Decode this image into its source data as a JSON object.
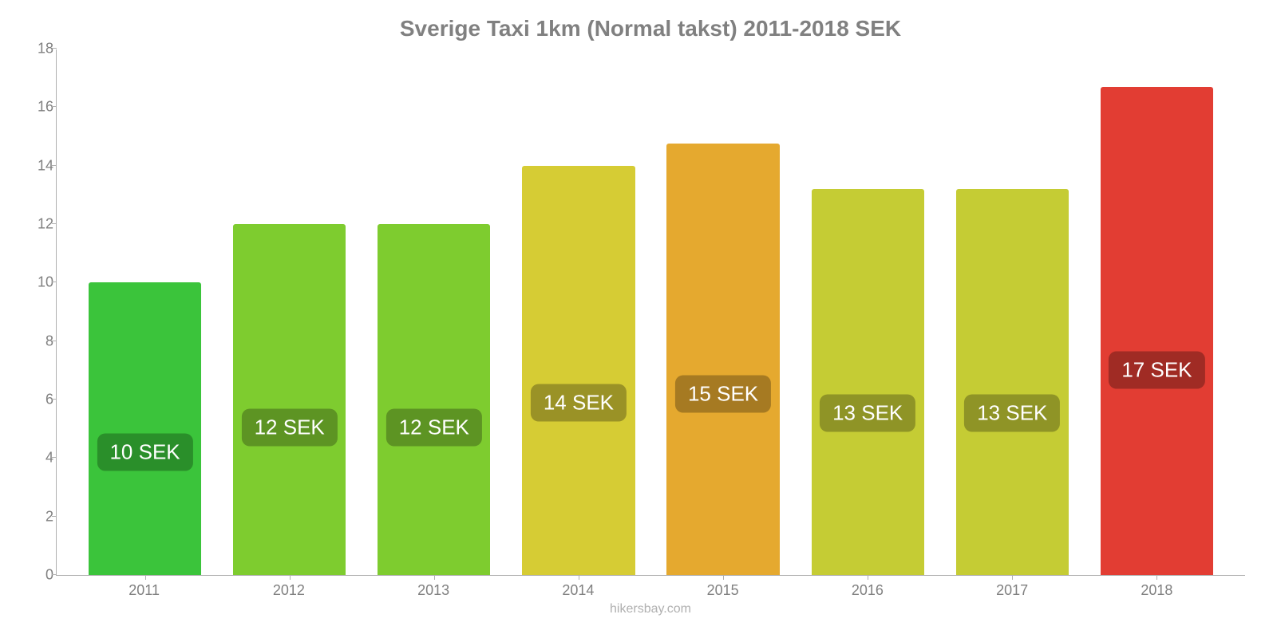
{
  "chart": {
    "type": "bar",
    "title": "Sverige Taxi 1km (Normal takst) 2011-2018 SEK",
    "title_color": "#808080",
    "title_fontsize": 28,
    "categories": [
      "2011",
      "2012",
      "2013",
      "2014",
      "2015",
      "2016",
      "2017",
      "2018"
    ],
    "values": [
      10,
      12,
      12,
      14,
      14.75,
      13.2,
      13.2,
      16.7
    ],
    "value_labels": [
      "10 SEK",
      "12 SEK",
      "12 SEK",
      "14 SEK",
      "15 SEK",
      "13 SEK",
      "13 SEK",
      "17 SEK"
    ],
    "bar_colors": [
      "#3bc43b",
      "#7ecc2f",
      "#7ecc2f",
      "#d6cc34",
      "#e5a92f",
      "#c5cc34",
      "#c5cc34",
      "#e23d33"
    ],
    "badge_colors": [
      "#2a8f2a",
      "#5d9423",
      "#5d9423",
      "#9a9226",
      "#a67a22",
      "#8f9426",
      "#8f9426",
      "#a02b24"
    ],
    "ylim": [
      0,
      18
    ],
    "yticks": [
      0,
      2,
      4,
      6,
      8,
      10,
      12,
      14,
      16,
      18
    ],
    "axis_color": "#b0b0b0",
    "label_color": "#808080",
    "label_fontsize": 18,
    "badge_fontsize": 26,
    "badge_text_color": "#ffffff",
    "bar_width": 0.78,
    "background_color": "#ffffff",
    "badge_y_position_pct": 42
  },
  "source": "hikersbay.com",
  "source_color": "#b0b0b0"
}
